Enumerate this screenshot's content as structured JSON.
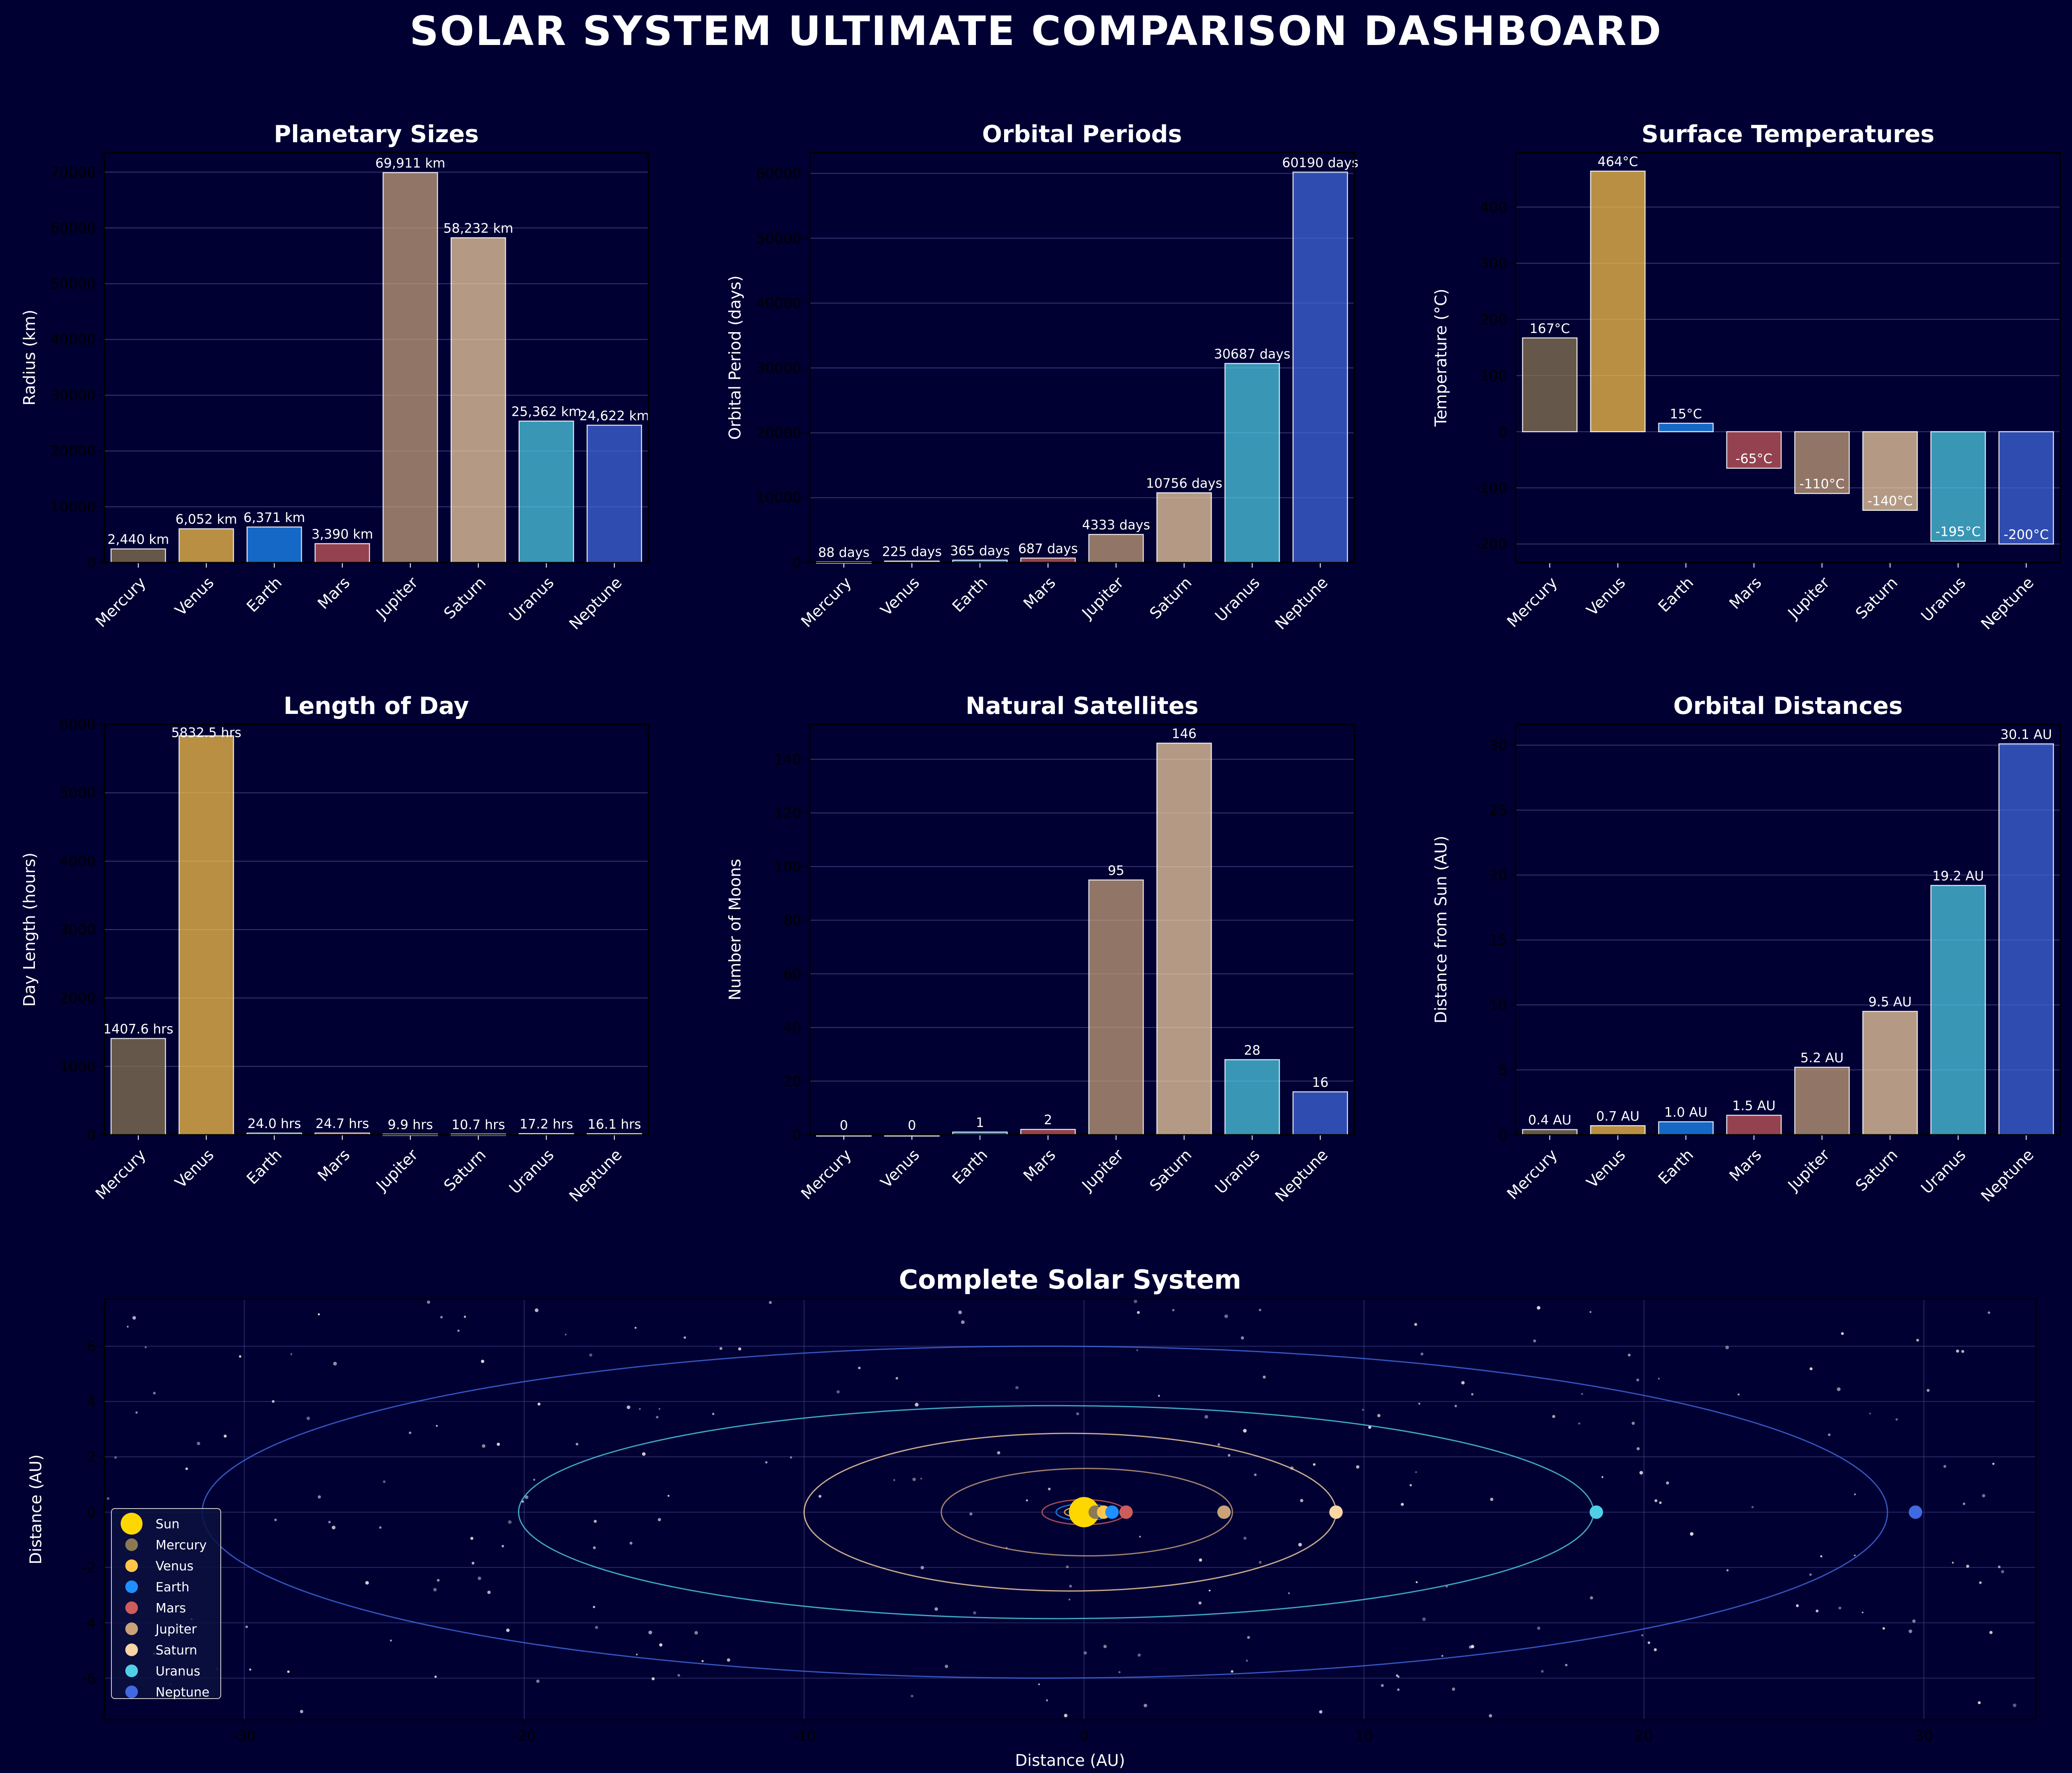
{
  "title": "SOLAR SYSTEM ULTIMATE COMPARISON DASHBOARD",
  "colors": {
    "background": "#000033",
    "Mercury": "#8C7853",
    "Venus": "#FFC649",
    "Earth": "#1E90FF",
    "Mars": "#CD5C5C",
    "Jupiter": "#C9A27A",
    "Saturn": "#FAD5A5",
    "Uranus": "#4FD0E7",
    "Neptune": "#4169E1",
    "Sun": "#FDB813",
    "grid": "#4A4A8A"
  },
  "chart_data": [
    {
      "id": "sizes",
      "type": "bar",
      "title": "Planetary Sizes",
      "ylabel": "Radius (km)",
      "xlabel": "",
      "categories": [
        "Mercury",
        "Venus",
        "Earth",
        "Mars",
        "Jupiter",
        "Saturn",
        "Uranus",
        "Neptune"
      ],
      "values": [
        2440,
        6052,
        6371,
        3390,
        69911,
        58232,
        25362,
        24622
      ],
      "labels": [
        "2,440 km",
        "6,052 km",
        "6,371 km",
        "3,390 km",
        "69,911 km",
        "58,232 km",
        "25,362 km",
        "24,622 km"
      ],
      "yticks": [
        "0",
        "10000",
        "20000",
        "30000",
        "40000",
        "50000",
        "60000",
        "70000"
      ],
      "ytick_values": [
        0,
        10000,
        20000,
        30000,
        40000,
        50000,
        60000,
        70000
      ],
      "ylim": [
        0,
        73500
      ],
      "grid": true
    },
    {
      "id": "periods",
      "type": "bar",
      "title": "Orbital Periods",
      "ylabel": "Orbital Period (days)",
      "xlabel": "",
      "categories": [
        "Mercury",
        "Venus",
        "Earth",
        "Mars",
        "Jupiter",
        "Saturn",
        "Uranus",
        "Neptune"
      ],
      "values": [
        88,
        225,
        365,
        687,
        4333,
        10756,
        30687,
        60190
      ],
      "labels": [
        "88 days",
        "225 days",
        "365 days",
        "687 days",
        "4333 days",
        "10756 days",
        "30687 days",
        "60190 days"
      ],
      "yticks": [
        "0",
        "10000",
        "20000",
        "30000",
        "40000",
        "50000",
        "60000"
      ],
      "ytick_values": [
        0,
        10000,
        20000,
        30000,
        40000,
        50000,
        60000
      ],
      "ylim": [
        0,
        63200
      ],
      "grid": true
    },
    {
      "id": "temps",
      "type": "bar",
      "title": "Surface Temperatures",
      "ylabel": "Temperature (°C)",
      "xlabel": "",
      "categories": [
        "Mercury",
        "Venus",
        "Earth",
        "Mars",
        "Jupiter",
        "Saturn",
        "Uranus",
        "Neptune"
      ],
      "values": [
        167,
        464,
        15,
        -65,
        -110,
        -140,
        -195,
        -200
      ],
      "labels": [
        "167°C",
        "464°C",
        "15°C",
        "-65°C",
        "-110°C",
        "-140°C",
        "-195°C",
        "-200°C"
      ],
      "yticks": [
        "-200",
        "-100",
        "0",
        "100",
        "200",
        "300",
        "400"
      ],
      "ytick_values": [
        -200,
        -100,
        0,
        100,
        200,
        300,
        400
      ],
      "ylim": [
        -233,
        497
      ],
      "grid": true
    },
    {
      "id": "daylen",
      "type": "bar",
      "title": "Length of Day",
      "ylabel": "Day Length (hours)",
      "xlabel": "",
      "categories": [
        "Mercury",
        "Venus",
        "Earth",
        "Mars",
        "Jupiter",
        "Saturn",
        "Uranus",
        "Neptune"
      ],
      "values": [
        1407.6,
        5832.5,
        24.0,
        24.7,
        9.9,
        10.7,
        17.2,
        16.1
      ],
      "labels": [
        "1407.6 hrs",
        "5832.5 hrs",
        "24.0 hrs",
        "24.7 hrs",
        "9.9 hrs",
        "10.7 hrs",
        "17.2 hrs",
        "16.1 hrs"
      ],
      "yticks": [
        "0",
        "1000",
        "2000",
        "3000",
        "4000",
        "5000",
        "6000"
      ],
      "ytick_values": [
        0,
        1000,
        2000,
        3000,
        4000,
        5000,
        6000
      ],
      "ylim": [
        0,
        6000
      ],
      "grid": true
    },
    {
      "id": "moons",
      "type": "bar",
      "title": "Natural Satellites",
      "ylabel": "Number of Moons",
      "xlabel": "",
      "categories": [
        "Mercury",
        "Venus",
        "Earth",
        "Mars",
        "Jupiter",
        "Saturn",
        "Uranus",
        "Neptune"
      ],
      "values": [
        0,
        0,
        1,
        2,
        95,
        146,
        28,
        16
      ],
      "labels": [
        "0",
        "0",
        "1",
        "2",
        "95",
        "146",
        "28",
        "16"
      ],
      "yticks": [
        "0",
        "20",
        "40",
        "60",
        "80",
        "100",
        "120",
        "140"
      ],
      "ytick_values": [
        0,
        20,
        40,
        60,
        80,
        100,
        120,
        140
      ],
      "ylim": [
        0,
        153
      ],
      "grid": true
    },
    {
      "id": "distances",
      "type": "bar",
      "title": "Orbital Distances",
      "ylabel": "Distance from Sun (AU)",
      "xlabel": "",
      "categories": [
        "Mercury",
        "Venus",
        "Earth",
        "Mars",
        "Jupiter",
        "Saturn",
        "Uranus",
        "Neptune"
      ],
      "values": [
        0.4,
        0.7,
        1.0,
        1.5,
        5.2,
        9.5,
        19.2,
        30.1
      ],
      "labels": [
        "0.4 AU",
        "0.7 AU",
        "1.0 AU",
        "1.5 AU",
        "5.2 AU",
        "9.5 AU",
        "19.2 AU",
        "30.1 AU"
      ],
      "yticks": [
        "0",
        "5",
        "10",
        "15",
        "20",
        "25",
        "30"
      ],
      "ytick_values": [
        0,
        5,
        10,
        15,
        20,
        25,
        30
      ],
      "ylim": [
        0,
        31.6
      ],
      "grid": true
    },
    {
      "id": "orbits",
      "type": "scatter",
      "title": "Complete Solar System",
      "xlabel": "Distance (AU)",
      "ylabel": "Distance (AU)",
      "xlim": [
        -35,
        34
      ],
      "ylim": [
        -7.5,
        7.7
      ],
      "xticks": [
        "-30",
        "-20",
        "-10",
        "0",
        "10",
        "20",
        "30"
      ],
      "xtick_values": [
        -30,
        -20,
        -10,
        0,
        10,
        20,
        30
      ],
      "yticks": [
        "-6",
        "-4",
        "-2",
        "0",
        "2",
        "4",
        "6"
      ],
      "ytick_values": [
        -6,
        -4,
        -2,
        0,
        2,
        4,
        6
      ],
      "grid": true,
      "legend_position": "lower-left",
      "legend": [
        "Sun",
        "Mercury",
        "Venus",
        "Earth",
        "Mars",
        "Jupiter",
        "Saturn",
        "Uranus",
        "Neptune"
      ],
      "sun": {
        "name": "Sun",
        "x": 0,
        "y": 0
      },
      "planets": [
        {
          "name": "Mercury",
          "x": 0.4,
          "y": 0
        },
        {
          "name": "Venus",
          "x": 0.7,
          "y": 0
        },
        {
          "name": "Earth",
          "x": 1.0,
          "y": 0
        },
        {
          "name": "Mars",
          "x": 1.5,
          "y": 0
        },
        {
          "name": "Jupiter",
          "x": 5.0,
          "y": 0
        },
        {
          "name": "Saturn",
          "x": 9.0,
          "y": 0
        },
        {
          "name": "Uranus",
          "x": 18.3,
          "y": 0
        },
        {
          "name": "Neptune",
          "x": 29.7,
          "y": 0
        }
      ],
      "orbits": [
        {
          "name": "Mercury",
          "cx": 0,
          "rx": 0.4,
          "ry": 0.12
        },
        {
          "name": "Venus",
          "cx": 0,
          "rx": 0.7,
          "ry": 0.2
        },
        {
          "name": "Earth",
          "cx": 0,
          "rx": 1.0,
          "ry": 0.3
        },
        {
          "name": "Mars",
          "cx": 0,
          "rx": 1.5,
          "ry": 0.45
        },
        {
          "name": "Jupiter",
          "cx": 0.1,
          "rx": 5.2,
          "ry": 1.58
        },
        {
          "name": "Saturn",
          "cx": -0.5,
          "rx": 9.5,
          "ry": 2.85
        },
        {
          "name": "Uranus",
          "cx": -1.0,
          "rx": 19.2,
          "ry": 3.85
        },
        {
          "name": "Neptune",
          "cx": -1.4,
          "rx": 30.1,
          "ry": 6.0
        }
      ]
    }
  ]
}
